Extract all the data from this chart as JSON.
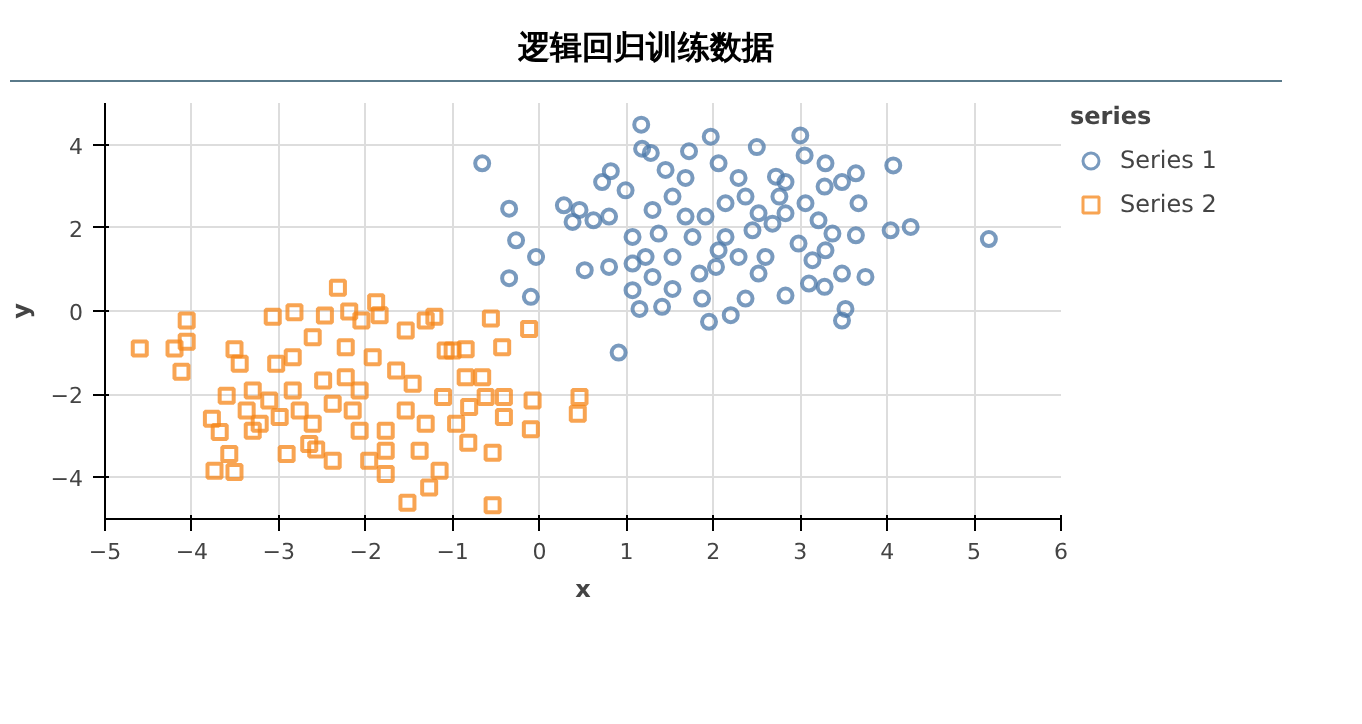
{
  "chart_data": {
    "type": "scatter",
    "title": "逻辑回归训练数据",
    "xlabel": "x",
    "ylabel": "y",
    "legend_title": "series",
    "legend": "right",
    "grid": true,
    "xlim": [
      -5,
      6
    ],
    "ylim": [
      -5,
      5
    ],
    "xticks": [
      -5,
      -4,
      -3,
      -2,
      -1,
      0,
      1,
      2,
      3,
      4,
      5,
      6
    ],
    "yticks": [
      -4,
      -2,
      0,
      2,
      4
    ],
    "series": [
      {
        "name": "Series 1",
        "color": "#4c78a8",
        "marker": "circle",
        "x": [
          -0.66,
          1.17,
          1.18,
          1.28,
          1.72,
          1.97,
          2.5,
          3.0,
          3.05,
          3.29,
          4.07,
          0.82,
          0.72,
          0.99,
          1.45,
          1.68,
          2.06,
          2.29,
          2.72,
          2.83,
          3.28,
          3.48,
          3.64,
          0.28,
          0.46,
          0.62,
          0.8,
          0.38,
          -0.35,
          -0.27,
          -0.04,
          -0.35,
          -0.1,
          0.91,
          0.52,
          0.8,
          1.07,
          1.15,
          1.41,
          1.53,
          1.87,
          1.95,
          2.2,
          2.37,
          2.83,
          3.1,
          3.28,
          3.48,
          3.75,
          3.52,
          3.48,
          4.04,
          4.27,
          5.17,
          3.64,
          3.67,
          1.07,
          1.22,
          1.3,
          1.53,
          1.76,
          1.91,
          2.14,
          2.37,
          2.45,
          2.6,
          2.68,
          2.83,
          2.98,
          3.06,
          3.21,
          3.37,
          1.53,
          1.3,
          1.37,
          1.68,
          2.06,
          2.29,
          2.52,
          2.03,
          1.84,
          1.07,
          3.14,
          3.29,
          2.14,
          2.76,
          2.52
        ],
        "values": [
          3.55,
          4.48,
          3.9,
          3.8,
          3.84,
          4.19,
          3.94,
          4.22,
          3.74,
          3.55,
          3.5,
          3.36,
          3.1,
          2.9,
          3.39,
          3.2,
          3.55,
          3.2,
          3.23,
          3.1,
          2.99,
          3.1,
          3.31,
          2.54,
          2.43,
          2.18,
          2.27,
          2.14,
          2.46,
          1.7,
          1.3,
          0.79,
          0.34,
          -1.0,
          0.98,
          1.06,
          0.5,
          0.05,
          0.1,
          0.53,
          0.3,
          -0.26,
          -0.1,
          0.3,
          0.37,
          0.66,
          0.58,
          0.9,
          0.82,
          0.05,
          -0.23,
          1.94,
          2.02,
          1.73,
          1.82,
          2.59,
          1.78,
          1.3,
          0.82,
          1.3,
          1.78,
          2.27,
          2.59,
          2.75,
          1.94,
          1.3,
          2.1,
          2.35,
          1.62,
          2.59,
          2.18,
          1.86,
          2.75,
          2.43,
          1.86,
          2.27,
          1.46,
          1.3,
          0.9,
          1.06,
          0.9,
          1.14,
          1.22,
          1.46,
          1.78,
          2.75,
          2.35
        ]
      },
      {
        "name": "Series 2",
        "color": "#f58518",
        "marker": "square",
        "x": [
          -4.6,
          -4.2,
          -4.06,
          -4.06,
          -4.12,
          -3.51,
          -3.45,
          -3.07,
          -2.82,
          -2.32,
          -2.19,
          -2.47,
          -1.88,
          -1.84,
          -2.05,
          -1.54,
          -1.31,
          -1.21,
          -0.56,
          -0.12,
          -0.43,
          -1.08,
          -0.85,
          0.46,
          0.44,
          -0.08,
          -0.1,
          -0.41,
          -0.41,
          -0.54,
          -0.54,
          -0.82,
          -1.27,
          -1.52,
          -1.15,
          -1.77,
          -2.38,
          -2.57,
          -2.91,
          -3.51,
          -3.74,
          -3.57,
          -3.77,
          -3.6,
          -3.68,
          -3.3,
          -3.11,
          -3.22,
          -2.84,
          -2.61,
          -2.23,
          -2.76,
          -2.61,
          -2.38,
          -2.15,
          -2.07,
          -2.23,
          -2.49,
          -2.84,
          -2.99,
          -1.92,
          -1.65,
          -1.46,
          -1.54,
          -1.31,
          -1.77,
          -1.77,
          -1.38,
          -0.96,
          -1.11,
          -0.85,
          -0.66,
          -0.62,
          -0.81,
          -1.0,
          -3.03,
          -3.37,
          -3.3,
          -2.65,
          -2.07,
          -1.96
        ],
        "values": [
          -0.9,
          -0.9,
          -0.23,
          -0.74,
          -1.46,
          -0.92,
          -1.27,
          -0.14,
          -0.03,
          0.56,
          -0.01,
          -0.11,
          0.21,
          -0.1,
          -0.23,
          -0.47,
          -0.23,
          -0.14,
          -0.18,
          -0.43,
          -0.87,
          -0.95,
          -0.92,
          -2.07,
          -2.47,
          -2.15,
          -2.84,
          -2.07,
          -2.55,
          -3.41,
          -4.67,
          -3.17,
          -4.24,
          -4.61,
          -3.84,
          -3.92,
          -3.6,
          -3.33,
          -3.44,
          -3.87,
          -3.84,
          -3.44,
          -2.59,
          -2.04,
          -2.91,
          -1.91,
          -2.15,
          -2.71,
          -1.11,
          -0.63,
          -0.87,
          -2.39,
          -2.71,
          -2.23,
          -2.39,
          -1.91,
          -1.59,
          -1.67,
          -1.91,
          -2.55,
          -1.11,
          -1.43,
          -1.75,
          -2.39,
          -2.71,
          -2.88,
          -3.36,
          -3.36,
          -2.71,
          -2.07,
          -1.59,
          -1.59,
          -2.07,
          -2.31,
          -0.95,
          -1.27,
          -2.39,
          -2.88,
          -3.2,
          -2.88,
          -3.6
        ]
      }
    ]
  }
}
